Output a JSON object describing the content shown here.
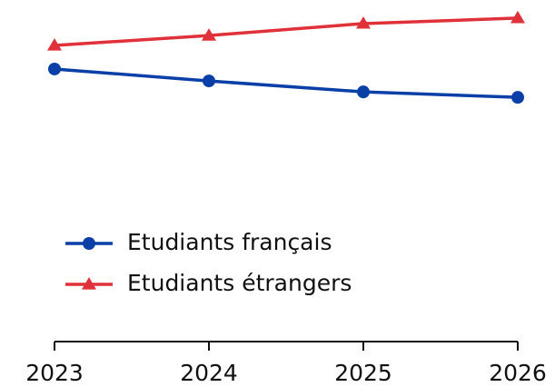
{
  "chart_data": {
    "type": "line",
    "x": [
      2023,
      2024,
      2025,
      2026
    ],
    "xlim": [
      2023,
      2026
    ],
    "xticks": [
      2023,
      2024,
      2025,
      2026
    ],
    "ylim": [
      0,
      100
    ],
    "series": [
      {
        "name": "Etudiants français",
        "color": "#0a3fa8",
        "marker": "circle",
        "values": [
          79.8,
          76.3,
          73.1,
          71.5
        ]
      },
      {
        "name": "Etudiants étrangers",
        "color": "#e0313a",
        "marker": "triangle",
        "values": [
          86.7,
          89.6,
          93.1,
          94.7
        ]
      }
    ]
  }
}
